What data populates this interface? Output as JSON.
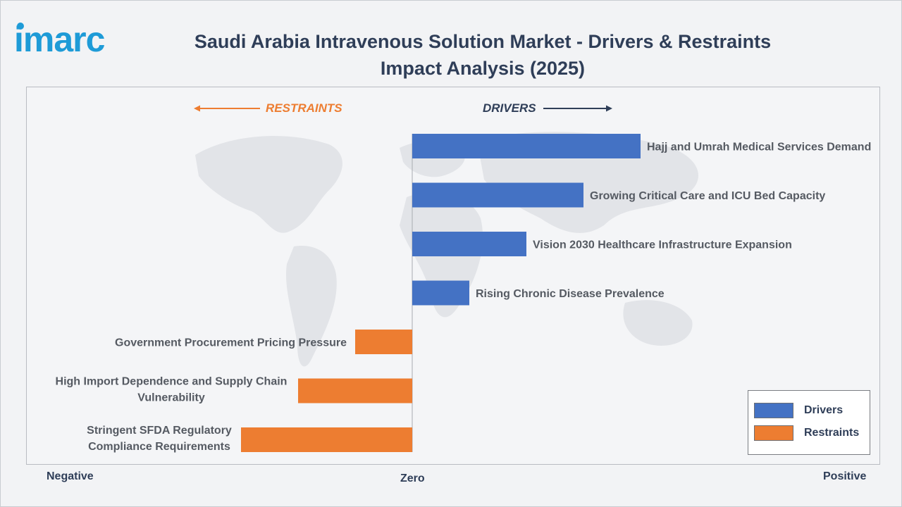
{
  "brand": {
    "logo_text": "imarc"
  },
  "title": "Saudi Arabia Intravenous Solution Market - Drivers & Restraints Impact Analysis (2025)",
  "direction_labels": {
    "restraints": "RESTRAINTS",
    "drivers": "DRIVERS"
  },
  "axis_labels": {
    "negative": "Negative",
    "zero": "Zero",
    "positive": "Positive"
  },
  "legend": {
    "position": "bottom-right",
    "items": [
      {
        "label": "Drivers",
        "color": "#4472c4"
      },
      {
        "label": "Restraints",
        "color": "#ed7d31"
      }
    ]
  },
  "chart_data": {
    "type": "bar",
    "orientation": "horizontal",
    "xlim": [
      -3,
      4
    ],
    "grid": false,
    "categories": [
      "Hajj and Umrah Medical Services Demand",
      "Growing Critical Care and ICU Bed Capacity",
      "Vision 2030 Healthcare Infrastructure Expansion",
      "Rising Chronic Disease Prevalence",
      "Government Procurement Pricing Pressure",
      "High Import Dependence and Supply Chain Vulnerability",
      "Stringent SFDA Regulatory Compliance Requirements"
    ],
    "label_lines": [
      [
        "Hajj and Umrah Medical Services Demand"
      ],
      [
        "Growing Critical Care and ICU Bed Capacity"
      ],
      [
        "Vision 2030 Healthcare Infrastructure Expansion"
      ],
      [
        "Rising Chronic Disease Prevalence"
      ],
      [
        "Government Procurement Pricing Pressure"
      ],
      [
        "High Import Dependence and Supply Chain",
        "Vulnerability"
      ],
      [
        "Stringent SFDA Regulatory",
        "Compliance Requirements"
      ]
    ],
    "values": [
      4,
      3,
      2,
      1,
      -1,
      -2,
      -3
    ],
    "series_type": [
      "Drivers",
      "Drivers",
      "Drivers",
      "Drivers",
      "Restraints",
      "Restraints",
      "Restraints"
    ],
    "colors": {
      "Drivers": "#4472c4",
      "Restraints": "#ed7d31"
    }
  }
}
